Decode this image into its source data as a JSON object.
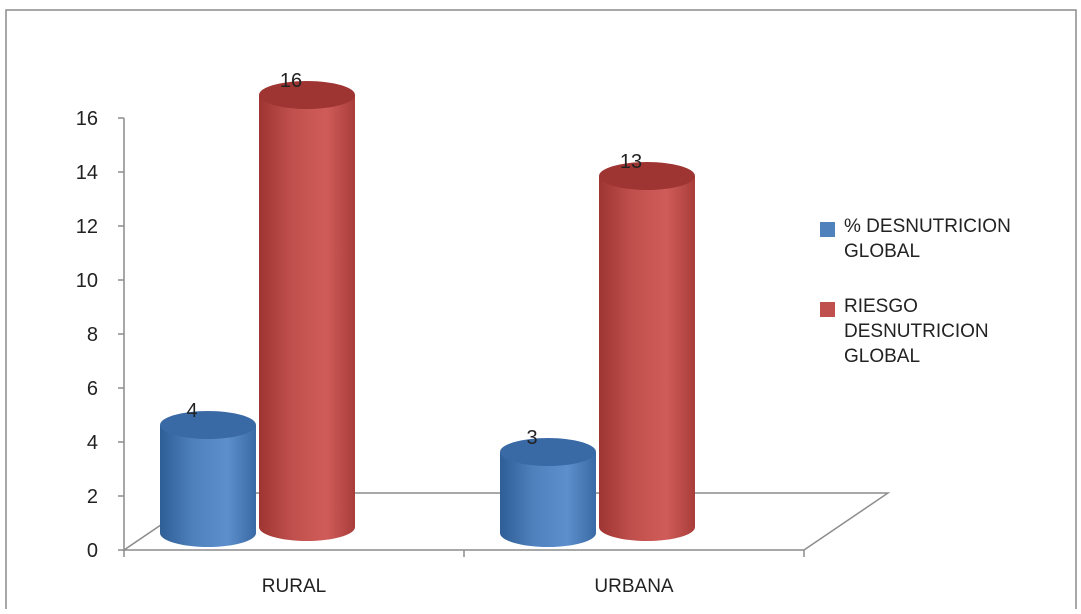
{
  "chart_data": {
    "type": "bar",
    "style": "3d-cylinder",
    "categories": [
      "RURAL",
      "URBANA"
    ],
    "series": [
      {
        "name": "% DESNUTRICION\nGLOBAL",
        "values": [
          4,
          3
        ],
        "color": "#4f81bd"
      },
      {
        "name": "RIESGO\nDESNUTRICION\nGLOBAL",
        "values": [
          16,
          13
        ],
        "color": "#c0504d"
      }
    ],
    "data_labels": true,
    "ylim": [
      0,
      16
    ],
    "yticks": [
      0,
      2,
      4,
      6,
      8,
      10,
      12,
      14,
      16
    ],
    "legend_position": "right",
    "grid": false
  }
}
